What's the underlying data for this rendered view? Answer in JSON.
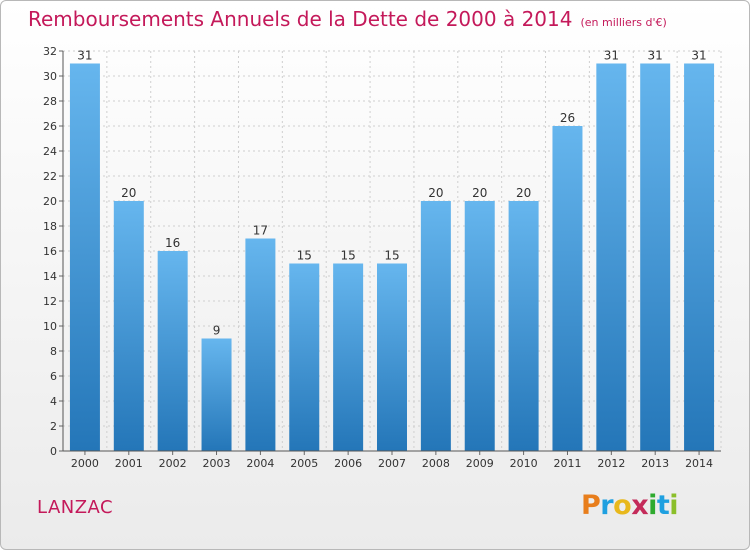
{
  "title": {
    "main": "Remboursements Annuels de la Dette de 2000 à 2014",
    "unit": "(en milliers d'€)"
  },
  "place_label": "LANZAC",
  "brand": {
    "letters": [
      "P",
      "r",
      "o",
      "x",
      "i",
      "t",
      "i"
    ],
    "colors": [
      "#e87e1c",
      "#1fa0e0",
      "#e8b81c",
      "#c42b5a",
      "#2eaa2e",
      "#1fa0e0",
      "#8bbf2a"
    ]
  },
  "colors": {
    "title": "#c4195a",
    "bar_top": "#66b6ee",
    "bar_bottom": "#2476b8",
    "grid": "#cfcfcf",
    "axis_text": "#333333"
  },
  "chart_data": {
    "type": "bar",
    "categories": [
      "2000",
      "2001",
      "2002",
      "2003",
      "2004",
      "2005",
      "2006",
      "2007",
      "2008",
      "2009",
      "2010",
      "2011",
      "2012",
      "2013",
      "2014"
    ],
    "values": [
      31,
      20,
      16,
      9,
      17,
      15,
      15,
      15,
      20,
      20,
      20,
      26,
      31,
      31,
      31
    ],
    "data_labels": [
      "31",
      "20",
      "16",
      "9",
      "17",
      "15",
      "15",
      "15",
      "20",
      "20",
      "20",
      "26",
      "31",
      "31",
      "31"
    ],
    "y_ticks": [
      "0",
      "2",
      "4",
      "6",
      "8",
      "10",
      "12",
      "14",
      "16",
      "18",
      "20",
      "22",
      "24",
      "26",
      "28",
      "30",
      "32"
    ],
    "ylim": [
      0,
      32
    ],
    "grid": true,
    "xlabel": "",
    "ylabel": ""
  }
}
